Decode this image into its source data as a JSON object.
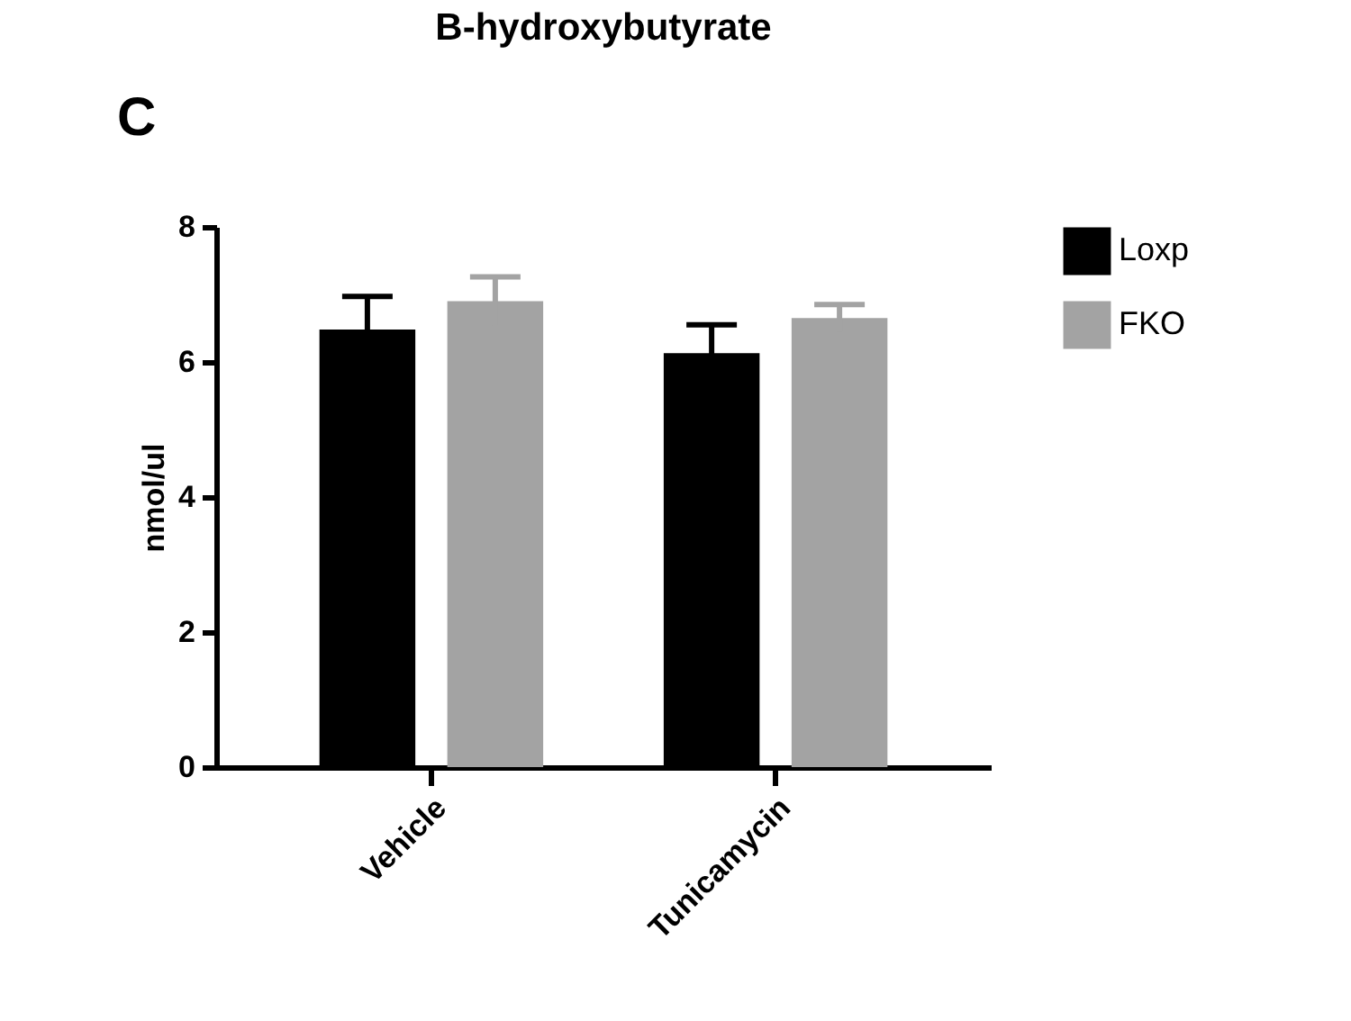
{
  "chart_data": {
    "type": "bar",
    "title": "B-hydroxybutyrate",
    "ylabel": "nmol/ul",
    "categories": [
      "Vehicle",
      "Tunicamycin"
    ],
    "series": [
      {
        "name": "Loxp",
        "color": "#000000",
        "values": [
          6.48,
          6.13
        ],
        "errors": [
          0.49,
          0.42
        ]
      },
      {
        "name": "FKO",
        "color": "#a3a3a3",
        "values": [
          6.9,
          6.65
        ],
        "errors": [
          0.36,
          0.2
        ]
      }
    ],
    "ylim": [
      0,
      8
    ],
    "yticks": [
      0,
      2,
      4,
      6,
      8
    ],
    "grid": false,
    "legend": "top right",
    "annotations": [
      "C"
    ]
  }
}
